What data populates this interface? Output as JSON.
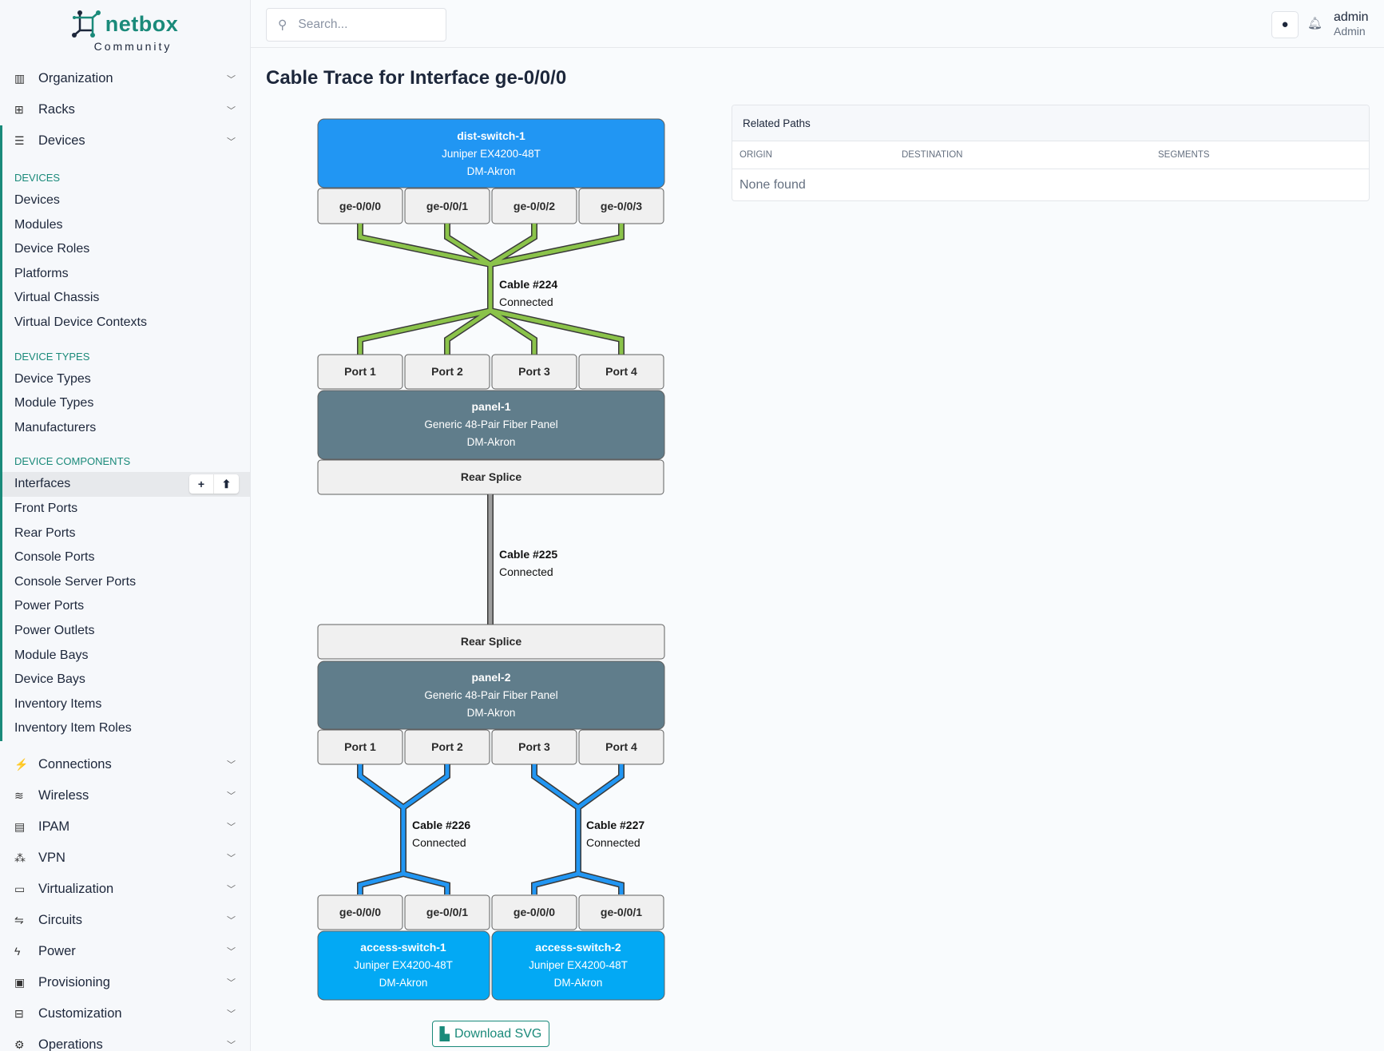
{
  "brand": {
    "name": "netbox",
    "edition": "Community",
    "accent": "#1a8a7a"
  },
  "sidebar": {
    "top": [
      {
        "label": "Organization",
        "icon": "building-icon"
      },
      {
        "label": "Racks",
        "icon": "rack-icon"
      },
      {
        "label": "Devices",
        "icon": "server-icon"
      }
    ],
    "sections": [
      {
        "title": "Devices",
        "items": [
          "Devices",
          "Modules",
          "Device Roles",
          "Platforms",
          "Virtual Chassis",
          "Virtual Device Contexts"
        ]
      },
      {
        "title": "Device Types",
        "items": [
          "Device Types",
          "Module Types",
          "Manufacturers"
        ]
      },
      {
        "title": "Device Components",
        "items": [
          "Interfaces",
          "Front Ports",
          "Rear Ports",
          "Console Ports",
          "Console Server Ports",
          "Power Ports",
          "Power Outlets",
          "Module Bays",
          "Device Bays",
          "Inventory Items",
          "Inventory Item Roles"
        ]
      }
    ],
    "active_item": "Interfaces",
    "active_buttons": {
      "add": "+",
      "import": "⬆"
    },
    "bottom": [
      {
        "label": "Connections"
      },
      {
        "label": "Wireless"
      },
      {
        "label": "IPAM"
      },
      {
        "label": "VPN"
      },
      {
        "label": "Virtualization"
      },
      {
        "label": "Circuits"
      },
      {
        "label": "Power"
      },
      {
        "label": "Provisioning"
      },
      {
        "label": "Customization"
      },
      {
        "label": "Operations"
      }
    ]
  },
  "header": {
    "search_placeholder": "Search...",
    "user": "admin",
    "role": "Admin"
  },
  "page": {
    "title": "Cable Trace for Interface ge-0/0/0"
  },
  "trace": {
    "origin": {
      "name": "dist-switch-1",
      "type": "Juniper EX4200-48T",
      "site": "DM-Akron",
      "color": "#2196f3",
      "ports": [
        "ge-0/0/0",
        "ge-0/0/1",
        "ge-0/0/2",
        "ge-0/0/3"
      ]
    },
    "cable1": {
      "label": "Cable #224",
      "status": "Connected",
      "color": "#8bc34a"
    },
    "panel1": {
      "front_ports": [
        "Port 1",
        "Port 2",
        "Port 3",
        "Port 4"
      ],
      "name": "panel-1",
      "type": "Generic 48-Pair Fiber Panel",
      "site": "DM-Akron",
      "rear": "Rear Splice",
      "color": "#607d8b"
    },
    "cable2": {
      "label": "Cable #225",
      "status": "Connected",
      "color": "#9e9e9e"
    },
    "panel2": {
      "rear": "Rear Splice",
      "name": "panel-2",
      "type": "Generic 48-Pair Fiber Panel",
      "site": "DM-Akron",
      "front_ports": [
        "Port 1",
        "Port 2",
        "Port 3",
        "Port 4"
      ],
      "color": "#607d8b"
    },
    "cable3": {
      "label": "Cable #226",
      "status": "Connected",
      "color": "#2196f3"
    },
    "cable4": {
      "label": "Cable #227",
      "status": "Connected",
      "color": "#2196f3"
    },
    "dest1": {
      "ports": [
        "ge-0/0/0",
        "ge-0/0/1"
      ],
      "name": "access-switch-1",
      "type": "Juniper EX4200-48T",
      "site": "DM-Akron",
      "color": "#03a9f4"
    },
    "dest2": {
      "ports": [
        "ge-0/0/0",
        "ge-0/0/1"
      ],
      "name": "access-switch-2",
      "type": "Juniper EX4200-48T",
      "site": "DM-Akron",
      "color": "#03a9f4"
    },
    "download_label": "Download SVG"
  },
  "related_paths": {
    "title": "Related Paths",
    "columns": [
      "Origin",
      "Destination",
      "Segments"
    ],
    "empty": "None found"
  }
}
